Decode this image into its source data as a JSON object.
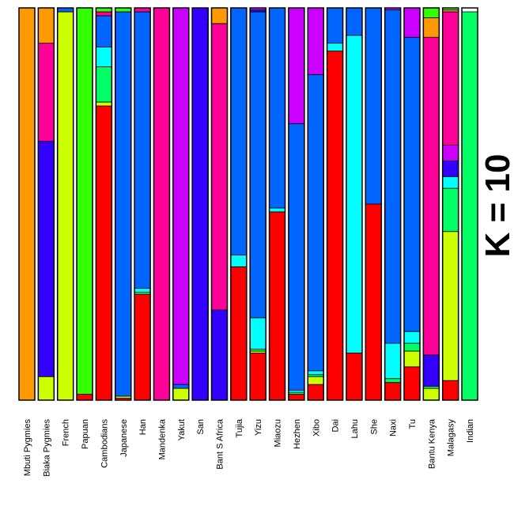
{
  "chart_data": {
    "type": "bar",
    "stacked": true,
    "ylim": [
      0,
      1
    ],
    "k_label": "K = 10",
    "categories": [
      "Mbuti Pygmies",
      "Biaka Pygmies",
      "French",
      "Papuan",
      "Cambodians",
      "Japanese",
      "Han",
      "Mandenka",
      "Yakut",
      "San",
      "Bant S Africa",
      "Tujia",
      "Yizu",
      "Miaozu",
      "Hezhen",
      "Xibo",
      "Dai",
      "Lahu",
      "She",
      "Naxi",
      "Tu",
      "Bantu Kenya",
      "Malagasy",
      "Indian"
    ],
    "cluster_colors": [
      "#ff0000",
      "#ccff00",
      "#00ff66",
      "#00ffff",
      "#0066ff",
      "#3300ff",
      "#cc00ff",
      "#ff0099",
      "#ff9900",
      "#33ff00"
    ],
    "proportions": [
      [
        0,
        0,
        0,
        0,
        0,
        0,
        0,
        0,
        1.0,
        0
      ],
      [
        0,
        0.06,
        0,
        0,
        0,
        0.6,
        0,
        0.25,
        0.09,
        0
      ],
      [
        0,
        0.99,
        0,
        0,
        0.01,
        0,
        0,
        0,
        0,
        0
      ],
      [
        0.015,
        0,
        0,
        0,
        0,
        0,
        0,
        0,
        0,
        0.985
      ],
      [
        0.75,
        0.01,
        0.09,
        0.05,
        0.08,
        0,
        0,
        0.01,
        0,
        0.01
      ],
      [
        0.005,
        0.005,
        0,
        0,
        0.98,
        0,
        0,
        0,
        0,
        0.01
      ],
      [
        0.27,
        0,
        0.005,
        0.01,
        0.705,
        0,
        0,
        0.01,
        0,
        0
      ],
      [
        0,
        0,
        0,
        0,
        0,
        0,
        0,
        1.0,
        0,
        0
      ],
      [
        0,
        0.03,
        0,
        0,
        0.01,
        0,
        0.96,
        0,
        0,
        0
      ],
      [
        0,
        0,
        0,
        0,
        0,
        1.0,
        0,
        0,
        0,
        0
      ],
      [
        0,
        0,
        0,
        0,
        0,
        0.23,
        0,
        0.73,
        0.04,
        0
      ],
      [
        0.34,
        0,
        0,
        0.03,
        0.63,
        0,
        0,
        0,
        0,
        0
      ],
      [
        0.12,
        0.005,
        0.005,
        0.08,
        0.78,
        0.005,
        0.005,
        0,
        0,
        0
      ],
      [
        0.48,
        0,
        0,
        0.01,
        0.51,
        0,
        0,
        0,
        0,
        0
      ],
      [
        0.015,
        0,
        0.005,
        0.005,
        0.68,
        0,
        0.295,
        0,
        0,
        0
      ],
      [
        0.04,
        0.02,
        0.005,
        0.01,
        0.755,
        0,
        0.17,
        0,
        0,
        0
      ],
      [
        0.89,
        0,
        0,
        0.02,
        0.09,
        0,
        0,
        0,
        0,
        0
      ],
      [
        0.12,
        0,
        0,
        0.81,
        0.07,
        0,
        0,
        0,
        0,
        0
      ],
      [
        0.5,
        0,
        0,
        0,
        0.5,
        0,
        0,
        0,
        0,
        0
      ],
      [
        0.045,
        0,
        0.01,
        0.09,
        0.85,
        0,
        0.005,
        0,
        0,
        0
      ],
      [
        0.085,
        0.04,
        0.02,
        0.03,
        0.75,
        0,
        0.075,
        0,
        0,
        0
      ],
      [
        0,
        0.03,
        0.005,
        0,
        0,
        0.08,
        0,
        0.81,
        0.05,
        0.025
      ],
      [
        0.05,
        0.38,
        0.11,
        0.03,
        0,
        0.04,
        0.04,
        0.34,
        0.005,
        0.005
      ],
      [
        0,
        0,
        0.99,
        0,
        0,
        0,
        0,
        0,
        0,
        0
      ]
    ]
  }
}
